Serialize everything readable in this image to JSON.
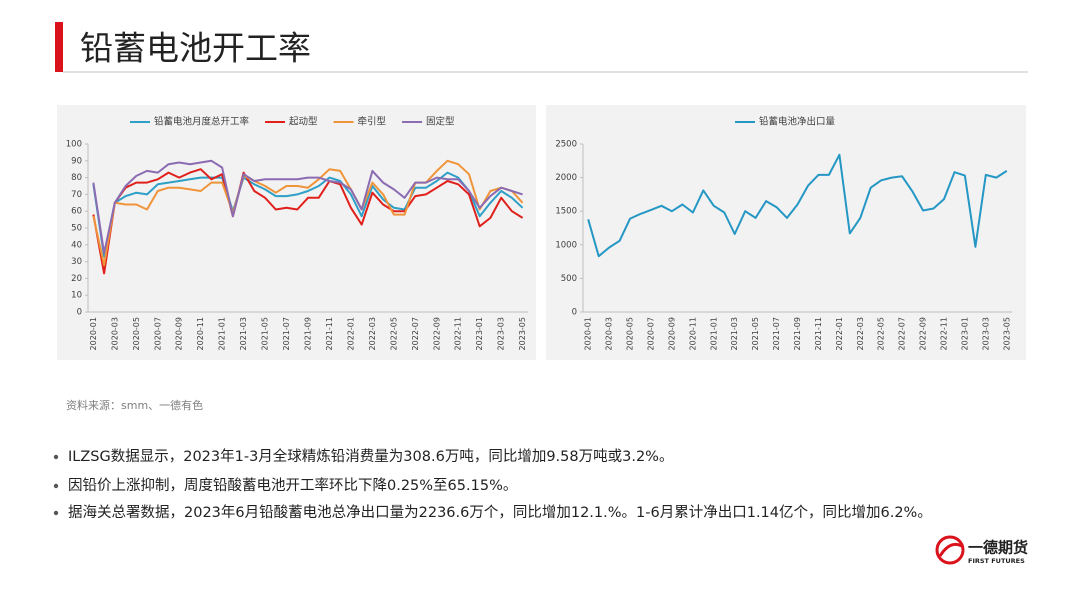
{
  "header": {
    "title": "铅蓄电池开工率"
  },
  "chart_data": [
    {
      "type": "line",
      "categories": [
        "2020-01",
        null,
        "2020-03",
        null,
        "2020-05",
        null,
        "2020-07",
        null,
        "2020-09",
        null,
        "2020-11",
        null,
        "2021-01",
        null,
        "2021-03",
        null,
        "2021-05",
        null,
        "2021-07",
        null,
        "2021-09",
        null,
        "2021-11",
        null,
        "2022-01",
        null,
        "2022-03",
        null,
        "2022-05",
        null,
        "2022-07",
        null,
        "2022-09",
        null,
        "2022-11",
        null,
        "2023-01",
        null,
        "2023-03",
        null,
        "2023-05"
      ],
      "series": [
        {
          "name": "铅蓄电池月度总开工率",
          "color": "#2e9fc7",
          "values": [
            76,
            33,
            65,
            69,
            71,
            70,
            76,
            77,
            78,
            79,
            80,
            80,
            80,
            60,
            80,
            76,
            73,
            69,
            69,
            70,
            72,
            75,
            80,
            78,
            70,
            57,
            75,
            67,
            62,
            61,
            74,
            74,
            78,
            83,
            80,
            72,
            57,
            65,
            72,
            68,
            62
          ]
        },
        {
          "name": "起动型",
          "color": "#e0201b",
          "values": [
            58,
            23,
            65,
            74,
            77,
            77,
            79,
            83,
            80,
            83,
            85,
            79,
            82,
            57,
            83,
            72,
            68,
            61,
            62,
            61,
            68,
            68,
            78,
            76,
            62,
            52,
            71,
            64,
            60,
            60,
            69,
            70,
            74,
            78,
            76,
            70,
            51,
            56,
            68,
            60,
            56
          ]
        },
        {
          "name": "牵引型",
          "color": "#f0943a",
          "values": [
            57,
            28,
            65,
            64,
            64,
            61,
            72,
            74,
            74,
            73,
            72,
            77,
            77,
            59,
            81,
            78,
            75,
            71,
            75,
            75,
            74,
            79,
            85,
            84,
            73,
            61,
            77,
            70,
            58,
            58,
            77,
            77,
            84,
            90,
            88,
            82,
            61,
            72,
            74,
            72,
            65
          ]
        },
        {
          "name": "固定型",
          "color": "#8b6bb1",
          "values": [
            77,
            35,
            65,
            75,
            81,
            84,
            83,
            88,
            89,
            88,
            89,
            90,
            86,
            57,
            82,
            78,
            79,
            79,
            79,
            79,
            80,
            80,
            78,
            77,
            73,
            61,
            84,
            77,
            73,
            68,
            77,
            77,
            80,
            79,
            79,
            72,
            62,
            69,
            74,
            72,
            70
          ]
        }
      ],
      "ylim": [
        0,
        100
      ],
      "yticks": [
        0,
        10,
        20,
        30,
        40,
        50,
        60,
        70,
        80,
        90,
        100
      ],
      "grid": false,
      "legend": "top"
    },
    {
      "type": "line",
      "categories": [
        "2020-01",
        null,
        "2020-03",
        null,
        "2020-05",
        null,
        "2020-07",
        null,
        "2020-09",
        null,
        "2020-11",
        null,
        "2021-01",
        null,
        "2021-03",
        null,
        "2021-05",
        null,
        "2021-07",
        null,
        "2021-09",
        null,
        "2021-11",
        null,
        "2022-01",
        null,
        "2022-03",
        null,
        "2022-05",
        null,
        "2022-07",
        null,
        "2022-09",
        null,
        "2022-11",
        null,
        "2023-01",
        null,
        "2023-03",
        null,
        "2023-05"
      ],
      "series": [
        {
          "name": "铅蓄电池净出口量",
          "color": "#2597c4",
          "values": [
            1380,
            830,
            960,
            1060,
            1390,
            1460,
            1520,
            1580,
            1500,
            1600,
            1480,
            1810,
            1580,
            1480,
            1160,
            1500,
            1400,
            1650,
            1560,
            1400,
            1600,
            1880,
            2040,
            2040,
            2340,
            1170,
            1400,
            1850,
            1960,
            2000,
            2020,
            1790,
            1510,
            1540,
            1680,
            2080,
            2030,
            970,
            2040,
            2000,
            2100
          ]
        }
      ],
      "ylim": [
        0,
        2500
      ],
      "yticks": [
        0,
        500,
        1000,
        1500,
        2000,
        2500
      ],
      "grid": false,
      "legend": "top"
    }
  ],
  "source": "资料来源：smm、一德有色",
  "bullets": [
    "ILZSG数据显示，2023年1-3月全球精炼铅消费量为308.6万吨，同比增加9.58万吨或3.2%。",
    "因铅价上涨抑制，周度铅酸蓄电池开工率环比下降0.25%至65.15%。",
    "据海关总署数据，2023年6月铅酸蓄电池总净出口量为2236.6万个，同比增加12.1.%。1-6月累计净出口1.14亿个，同比增加6.2%。"
  ],
  "logo": {
    "name": "一德期货",
    "english": "FIRST FUTURES"
  }
}
